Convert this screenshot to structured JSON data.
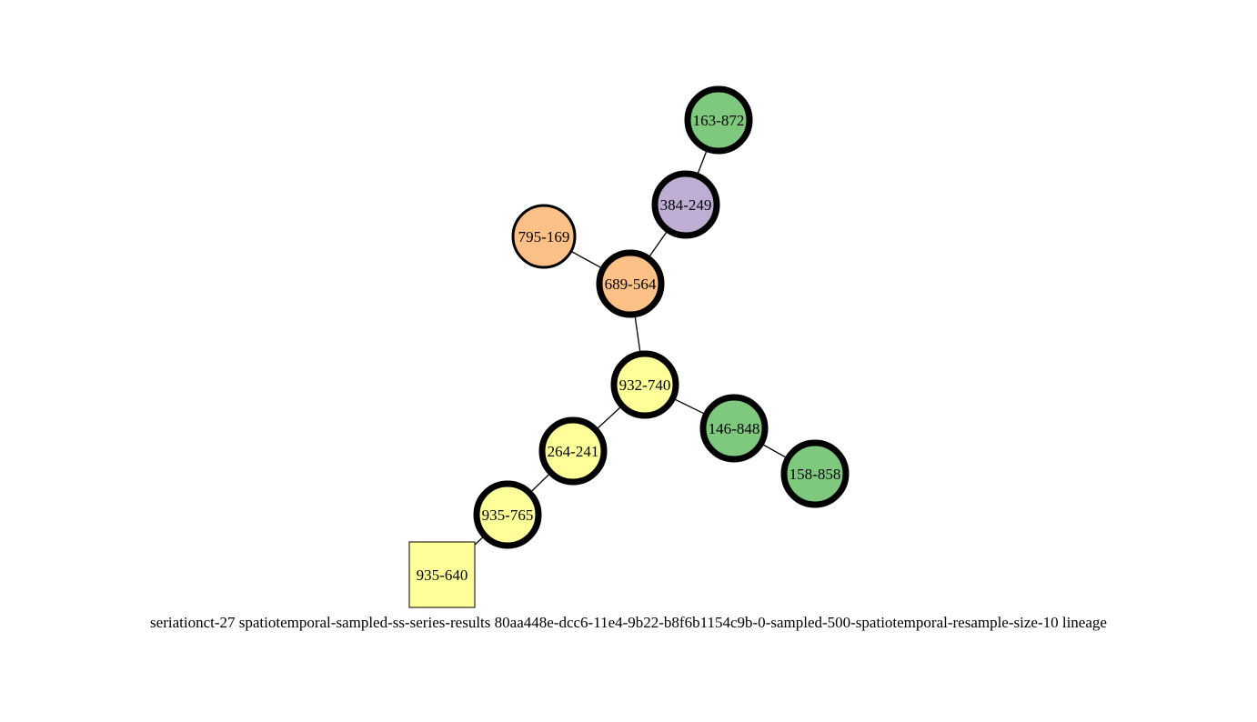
{
  "graph": {
    "colors": {
      "yellow": "#ffff99",
      "green": "#7fc97f",
      "orange": "#fdc086",
      "purple": "#beaed4",
      "stroke": "#000000"
    },
    "nodes": [
      {
        "id": "163-872",
        "label": "163-872",
        "color": "green",
        "shape": "circle",
        "emphasis": "thick"
      },
      {
        "id": "384-249",
        "label": "384-249",
        "color": "purple",
        "shape": "circle",
        "emphasis": "thick"
      },
      {
        "id": "795-169",
        "label": "795-169",
        "color": "orange",
        "shape": "circle",
        "emphasis": "normal"
      },
      {
        "id": "689-564",
        "label": "689-564",
        "color": "orange",
        "shape": "circle",
        "emphasis": "thick"
      },
      {
        "id": "932-740",
        "label": "932-740",
        "color": "yellow",
        "shape": "circle",
        "emphasis": "thick"
      },
      {
        "id": "146-848",
        "label": "146-848",
        "color": "green",
        "shape": "circle",
        "emphasis": "thick"
      },
      {
        "id": "158-858",
        "label": "158-858",
        "color": "green",
        "shape": "circle",
        "emphasis": "thick"
      },
      {
        "id": "264-241",
        "label": "264-241",
        "color": "yellow",
        "shape": "circle",
        "emphasis": "thick"
      },
      {
        "id": "935-765",
        "label": "935-765",
        "color": "yellow",
        "shape": "circle",
        "emphasis": "thick"
      },
      {
        "id": "935-640",
        "label": "935-640",
        "color": "yellow",
        "shape": "square",
        "emphasis": "normal"
      }
    ],
    "edges": [
      [
        "163-872",
        "384-249"
      ],
      [
        "384-249",
        "689-564"
      ],
      [
        "795-169",
        "689-564"
      ],
      [
        "689-564",
        "932-740"
      ],
      [
        "932-740",
        "146-848"
      ],
      [
        "146-848",
        "158-858"
      ],
      [
        "932-740",
        "264-241"
      ],
      [
        "264-241",
        "935-765"
      ],
      [
        "935-765",
        "935-640"
      ]
    ]
  },
  "caption": "seriationct-27  spatiotemporal-sampled-ss-series-results  80aa448e-dcc6-11e4-9b22-b8f6b1154c9b-0-sampled-500-spatiotemporal-resample-size-10  lineage"
}
